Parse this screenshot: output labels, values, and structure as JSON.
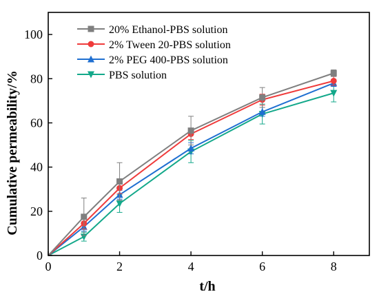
{
  "chart_data": {
    "type": "line",
    "xlabel": "t/h",
    "ylabel": "Cumulative permeability/%",
    "xlim": [
      0,
      9
    ],
    "ylim": [
      0,
      110
    ],
    "xticks": [
      0,
      2,
      4,
      6,
      8
    ],
    "yticks": [
      0,
      20,
      40,
      60,
      80,
      100
    ],
    "grid": false,
    "legend_position": "top-left",
    "x": [
      0,
      1,
      2,
      4,
      6,
      8
    ],
    "series": [
      {
        "name": "20% Ethanol-PBS solution",
        "color": "#7f7f7f",
        "marker": "square",
        "values": [
          0,
          17.5,
          33.5,
          56.5,
          71.5,
          82.5
        ],
        "error": [
          0,
          8.5,
          8.5,
          6.5,
          4.5,
          1.5
        ]
      },
      {
        "name": "2% Tween 20-PBS solution",
        "color": "#ef3b3b",
        "marker": "circle",
        "values": [
          0,
          14.5,
          30.5,
          55,
          70.5,
          79
        ],
        "error": [
          0,
          2.5,
          2.5,
          2.5,
          2.5,
          2
        ]
      },
      {
        "name": "2% PEG 400-PBS solution",
        "color": "#1f6fd1",
        "marker": "triangle-up",
        "values": [
          0,
          13,
          27.5,
          48.5,
          65,
          78
        ],
        "error": [
          0,
          2,
          2,
          2.5,
          2,
          1.5
        ]
      },
      {
        "name": "PBS solution",
        "color": "#13a88a",
        "marker": "triangle-down",
        "values": [
          0,
          8.5,
          23.5,
          47,
          64,
          73.5
        ],
        "error": [
          0,
          2,
          4,
          5,
          4.5,
          4
        ]
      }
    ]
  }
}
